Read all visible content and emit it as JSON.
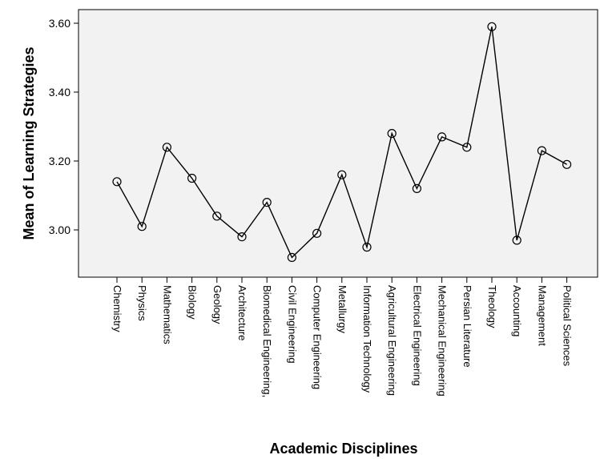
{
  "chart_data": {
    "type": "line",
    "ylabel": "Mean of Learning Strategies",
    "xlabel": "Academic Disciplines",
    "ylim": [
      2.86,
      3.64
    ],
    "yticks": [
      "3.60",
      "3.40",
      "3.20",
      "3.00"
    ],
    "ytick_values": [
      3.6,
      3.4,
      3.2,
      3.0
    ],
    "grid": false,
    "categories": [
      "Chemistry",
      "Physics",
      "Mathematics",
      "Biology",
      "Geology",
      "Architecture",
      "Biomedical Engineering,",
      "Civil Engineering",
      "Computer Engineering",
      "Metallurgy",
      "Information Technology",
      "Agricultural Engineering",
      "Electrical Engineering",
      "Mechanical Engineering",
      "Persian Literature",
      "Theology",
      "Accounting",
      "Management",
      "Political Sciences"
    ],
    "values": [
      3.14,
      3.01,
      3.24,
      3.15,
      3.04,
      2.98,
      3.08,
      2.92,
      2.99,
      3.16,
      2.95,
      3.28,
      3.12,
      3.27,
      3.24,
      3.59,
      2.97,
      3.23,
      3.19
    ],
    "colors": {
      "plot_background": "#f2f2f2",
      "line": "#000000",
      "marker": "#000000"
    }
  }
}
